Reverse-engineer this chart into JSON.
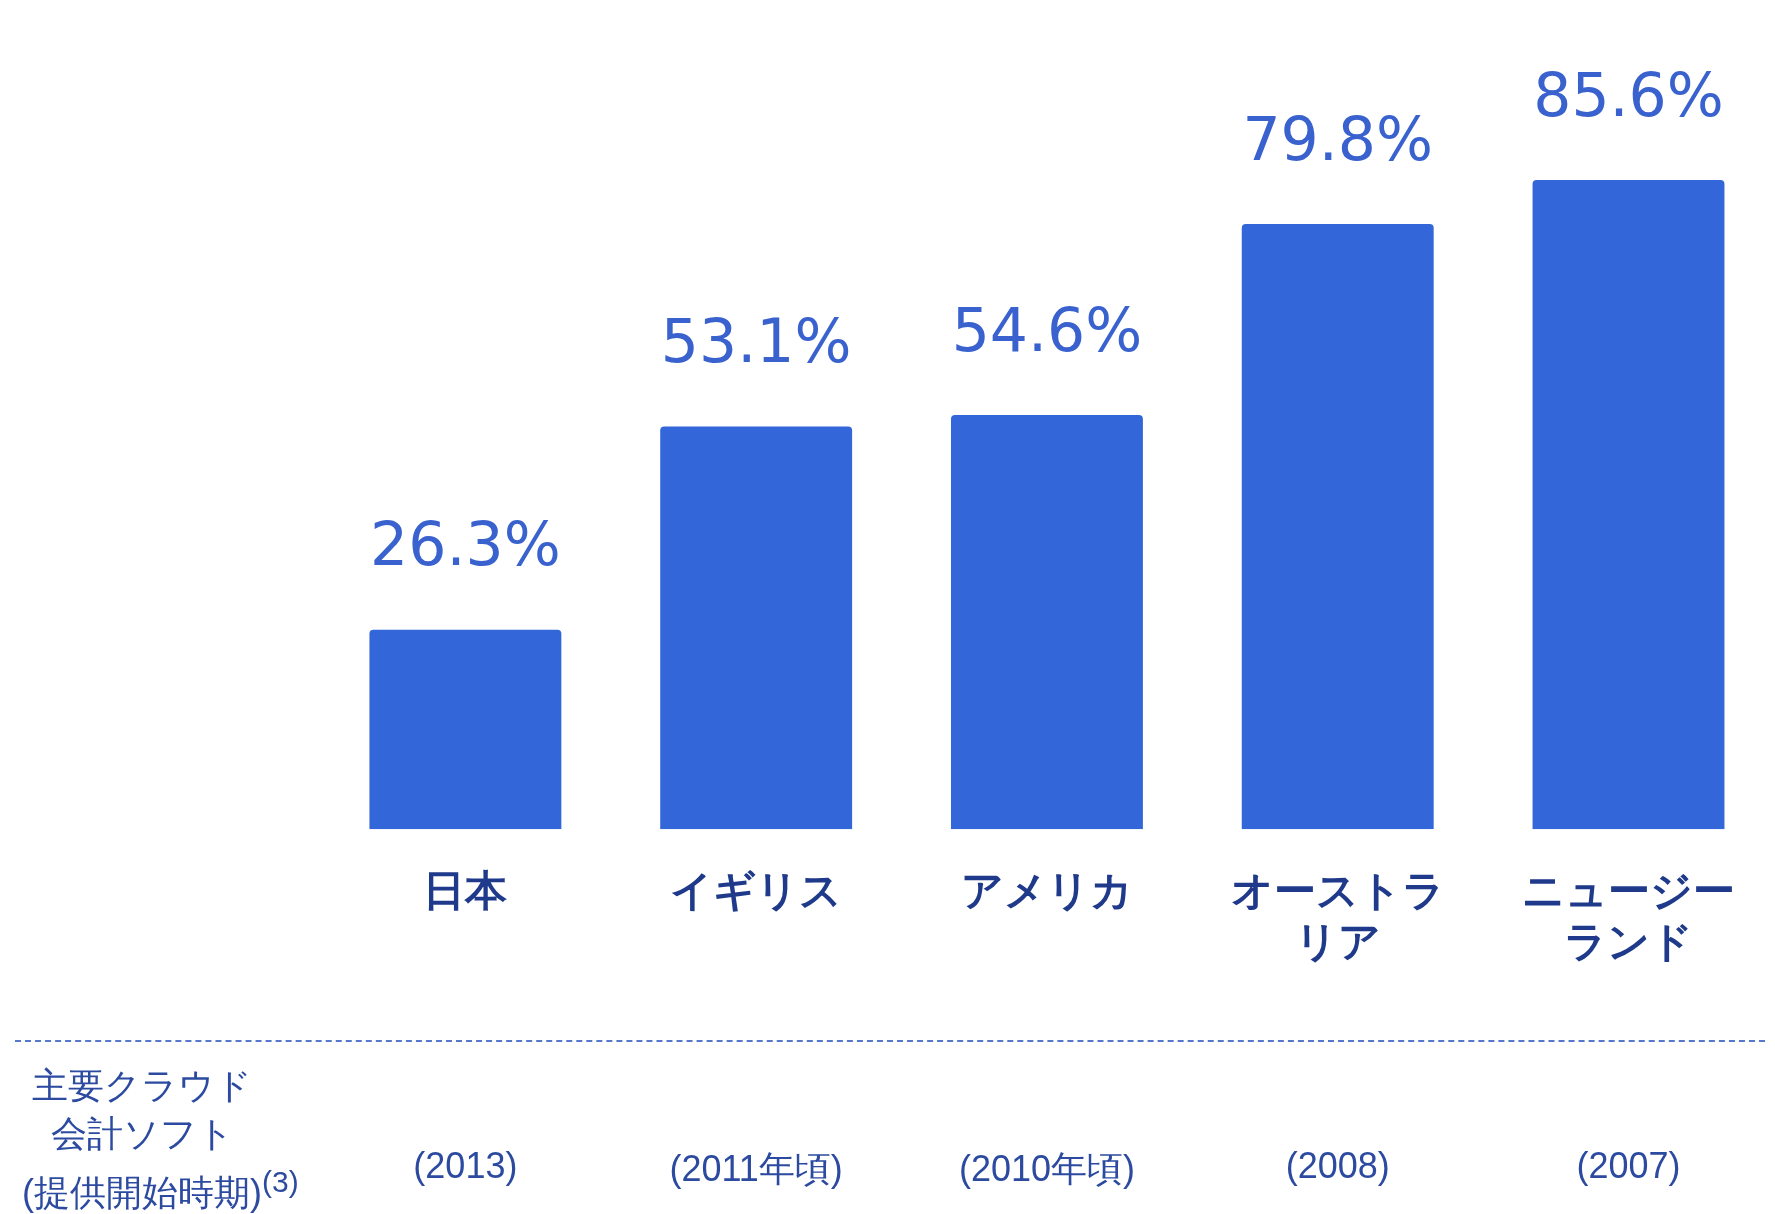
{
  "chart_data": {
    "type": "bar",
    "categories": [
      "日本",
      "イギリス",
      "アメリカ",
      "オーストラリア",
      "ニュージーランド"
    ],
    "values": [
      26.3,
      53.1,
      54.6,
      79.8,
      85.6
    ],
    "color": "#3366d9",
    "value_labels": [
      "26.3%",
      "53.1%",
      "54.6%",
      "79.8%",
      "85.6%"
    ],
    "legend": false,
    "grid": false,
    "annotations": [
      "主要クラウド会計ソフト(提供開始時期)$^{(3)}$",
      "(2013)",
      "(2011年頃)",
      "(2010年頃)",
      "(2008)",
      "(2007)"
    ]
  }
}
